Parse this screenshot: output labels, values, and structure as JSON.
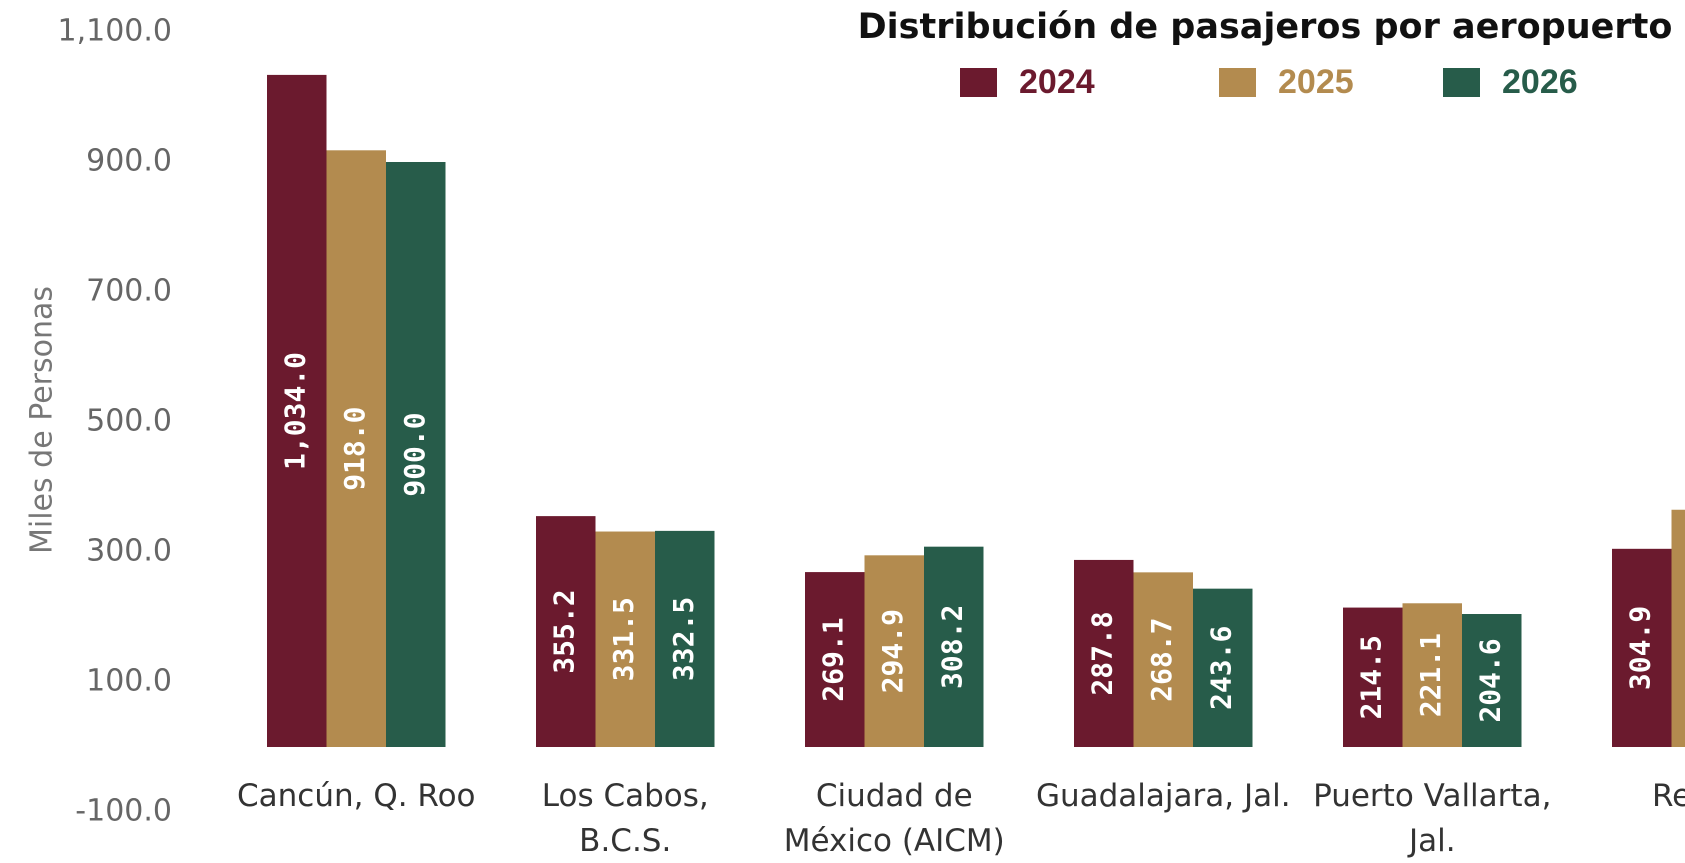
{
  "chart_data": {
    "type": "bar",
    "title": "Distribución de pasajeros por aeropuerto",
    "y_label": "Miles de Personas",
    "categories": [
      "Cancún, Q. Roo",
      "Los Cabos,\nB.C.S.",
      "Ciudad de\nMéxico (AICM)",
      "Guadalajara, Jal.",
      "Puerto Vallarta,\nJal.",
      "Re"
    ],
    "series": [
      {
        "name": "2024",
        "color": "#6b1a2e",
        "values": [
          1034.0,
          355.2,
          269.1,
          287.8,
          214.5,
          304.9
        ],
        "value_labels": [
          "1,034.0",
          "355.2",
          "269.1",
          "287.8",
          "214.5",
          "304.9"
        ]
      },
      {
        "name": "2025",
        "color": "#b38b4f",
        "values": [
          918.0,
          331.5,
          294.9,
          268.7,
          221.1,
          365
        ],
        "value_labels": [
          "918.0",
          "331.5",
          "294.9",
          "268.7",
          "221.1",
          null
        ]
      },
      {
        "name": "2026",
        "color": "#275c4a",
        "values": [
          900.0,
          332.5,
          308.2,
          243.6,
          204.6,
          null
        ],
        "value_labels": [
          "900.0",
          "332.5",
          "308.2",
          "243.6",
          "204.6",
          null
        ]
      }
    ],
    "ylim": [
      -100,
      1100
    ],
    "yticks": [
      {
        "value": -100,
        "label": "-100.0"
      },
      {
        "value": 100,
        "label": "100.0"
      },
      {
        "value": 300,
        "label": "300.0"
      },
      {
        "value": 500,
        "label": "500.0"
      },
      {
        "value": 700,
        "label": "700.0"
      },
      {
        "value": 900,
        "label": "900.0"
      },
      {
        "value": 1100,
        "label": "1,100.0"
      }
    ],
    "grid": false,
    "legend": "top-right"
  }
}
